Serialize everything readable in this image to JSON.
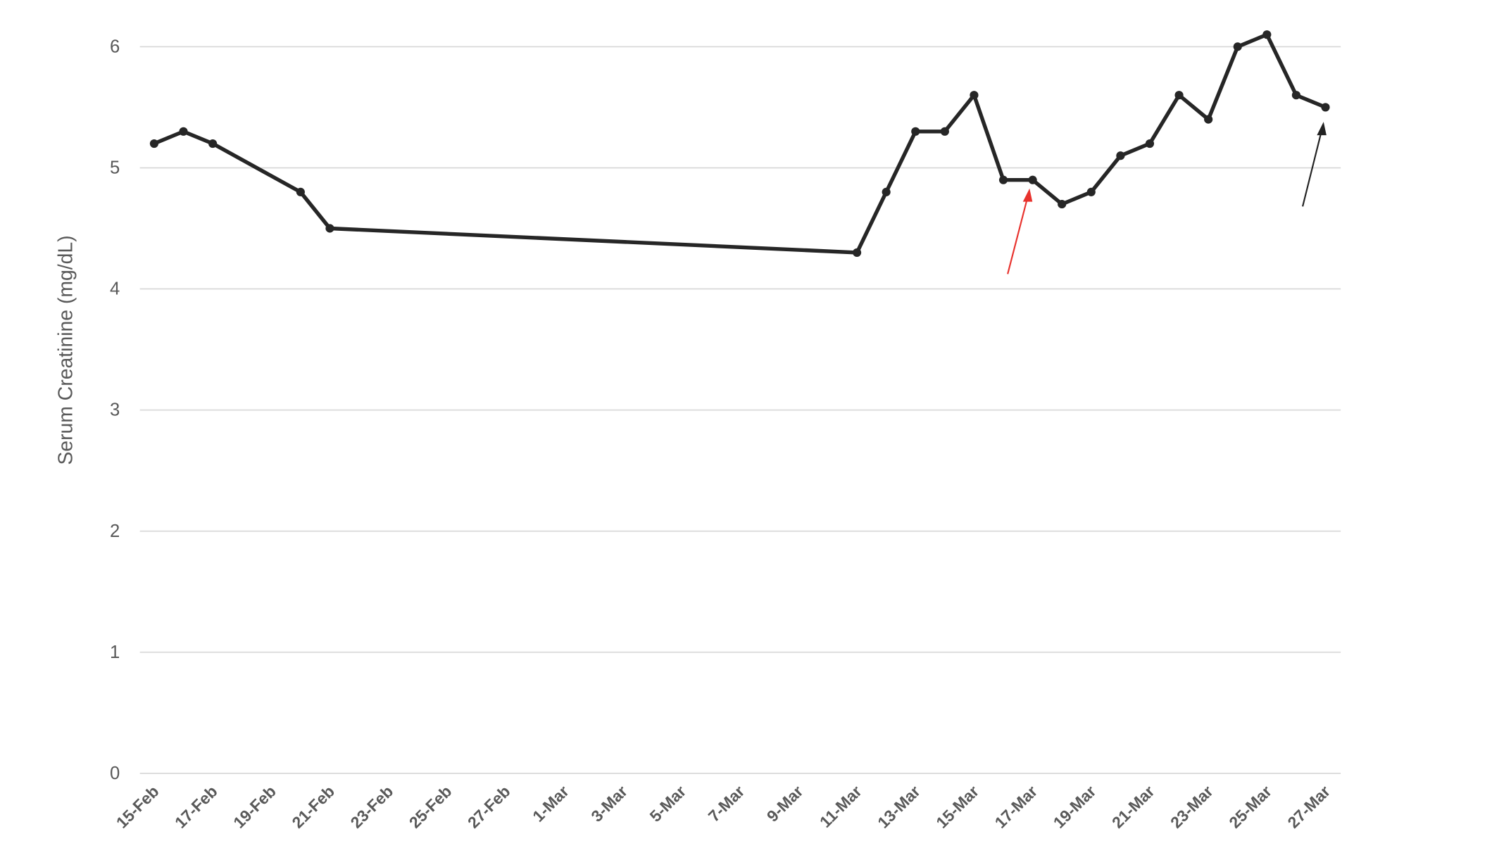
{
  "chart_data": {
    "type": "line",
    "y_label": "Serum Creatinine (mg/dL)",
    "x": [
      "15-Feb",
      "16-Feb",
      "17-Feb",
      "20-Feb",
      "21-Feb",
      "11-Mar",
      "12-Mar",
      "13-Mar",
      "14-Mar",
      "15-Mar",
      "16-Mar",
      "17-Mar",
      "18-Mar",
      "19-Mar",
      "20-Mar",
      "21-Mar",
      "22-Mar",
      "23-Mar",
      "24-Mar",
      "25-Mar",
      "26-Mar",
      "27-Mar"
    ],
    "series": [
      {
        "color": "#262626",
        "values": [
          5.2,
          5.3,
          5.2,
          4.8,
          4.5,
          4.3,
          4.8,
          5.3,
          5.3,
          5.6,
          4.9,
          4.9,
          4.7,
          4.8,
          5.1,
          5.2,
          5.6,
          5.4,
          6.0,
          6.1,
          5.6,
          5.5
        ]
      }
    ],
    "xlim": [
      "15-Feb",
      "27-Mar"
    ],
    "xticks": [
      "15-Feb",
      "17-Feb",
      "19-Feb",
      "21-Feb",
      "23-Feb",
      "25-Feb",
      "27-Feb",
      "1-Mar",
      "3-Mar",
      "5-Mar",
      "7-Mar",
      "9-Mar",
      "11-Mar",
      "13-Mar",
      "15-Mar",
      "17-Mar",
      "19-Mar",
      "21-Mar",
      "23-Mar",
      "25-Mar",
      "27-Mar"
    ],
    "ylim": [
      0,
      6
    ],
    "yticks": [
      0,
      1,
      2,
      3,
      4,
      5,
      6
    ],
    "grid": true
  }
}
